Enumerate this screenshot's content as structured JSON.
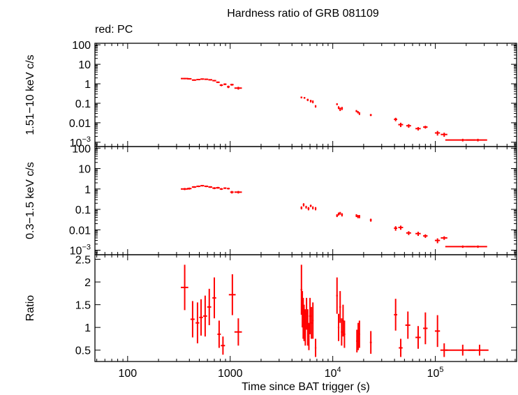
{
  "chart_data": {
    "type": "scatter",
    "title": "Hardness ratio of GRB 081109",
    "subtitle": "red: PC",
    "xlabel": "Time since BAT trigger (s)",
    "x_scale": "log",
    "xlim": [
      48,
      620000
    ],
    "x_ticks": [
      {
        "value": 100,
        "label": "100"
      },
      {
        "value": 1000,
        "label": "1000"
      },
      {
        "value": 10000,
        "base": "10",
        "exp": "4"
      },
      {
        "value": 100000,
        "base": "10",
        "exp": "5"
      }
    ],
    "panels": [
      {
        "id": "hard",
        "ylabel": "1.51−10 keV c/s",
        "y_scale": "log",
        "ylim": [
          0.0006,
          120
        ],
        "y_ticks": [
          {
            "value": 100,
            "label": "100"
          },
          {
            "value": 10,
            "label": "10"
          },
          {
            "value": 1,
            "label": "1"
          },
          {
            "value": 0.1,
            "label": "0.1"
          },
          {
            "value": 0.01,
            "label": "0.01"
          },
          {
            "value": 0.001,
            "base": "10",
            "exp": "−3"
          }
        ],
        "points": [
          [
            360,
            1.85,
            30,
            0.15
          ],
          [
            400,
            1.8,
            20,
            0.15
          ],
          [
            445,
            1.55,
            22,
            0.12
          ],
          [
            490,
            1.65,
            22,
            0.12
          ],
          [
            535,
            1.75,
            22,
            0.12
          ],
          [
            585,
            1.7,
            25,
            0.12
          ],
          [
            640,
            1.6,
            28,
            0.12
          ],
          [
            700,
            1.45,
            30,
            0.12
          ],
          [
            760,
            1.2,
            30,
            0.1
          ],
          [
            820,
            0.85,
            30,
            0.1
          ],
          [
            890,
            0.95,
            30,
            0.1
          ],
          [
            960,
            0.7,
            30,
            0.1
          ],
          [
            1040,
            0.9,
            40,
            0.1
          ],
          [
            1200,
            0.6,
            100,
            0.1
          ],
          [
            4950,
            0.2,
            100,
            0.02
          ],
          [
            5300,
            0.19,
            100,
            0.02
          ],
          [
            5700,
            0.15,
            120,
            0.02
          ],
          [
            6100,
            0.13,
            120,
            0.02
          ],
          [
            6400,
            0.12,
            100,
            0.02
          ],
          [
            6800,
            0.07,
            120,
            0.01
          ],
          [
            11000,
            0.09,
            200,
            0.01
          ],
          [
            11400,
            0.06,
            200,
            0.01
          ],
          [
            11800,
            0.05,
            200,
            0.01
          ],
          [
            12300,
            0.055,
            250,
            0.01
          ],
          [
            17000,
            0.04,
            300,
            0.005
          ],
          [
            17600,
            0.035,
            300,
            0.005
          ],
          [
            18200,
            0.03,
            300,
            0.005
          ],
          [
            23500,
            0.025,
            500,
            0.003
          ],
          [
            41000,
            0.015,
            1500,
            0.003
          ],
          [
            46000,
            0.008,
            2500,
            0.002
          ],
          [
            55000,
            0.007,
            3000,
            0.0015
          ],
          [
            68000,
            0.005,
            4000,
            0.001
          ],
          [
            80000,
            0.006,
            4000,
            0.001
          ],
          [
            105000,
            0.003,
            6000,
            0.0008
          ],
          [
            122000,
            0.0025,
            9000,
            0.0006
          ],
          [
            185000,
            0.0013,
            60000,
            0.0002
          ],
          [
            260000,
            0.0013,
            60000,
            0.0002
          ]
        ]
      },
      {
        "id": "soft",
        "ylabel": "0.3−1.5 keV c/s",
        "y_scale": "log",
        "ylim": [
          0.0006,
          120
        ],
        "y_ticks": [
          {
            "value": 100,
            "label": "100"
          },
          {
            "value": 10,
            "label": "10"
          },
          {
            "value": 1,
            "label": "1"
          },
          {
            "value": 0.1,
            "label": "0.1"
          },
          {
            "value": 0.01,
            "label": "0.01"
          },
          {
            "value": 0.001,
            "base": "10",
            "exp": "−3"
          }
        ],
        "points": [
          [
            360,
            1.0,
            30,
            0.12
          ],
          [
            400,
            1.05,
            20,
            0.12
          ],
          [
            445,
            1.25,
            22,
            0.12
          ],
          [
            490,
            1.35,
            22,
            0.12
          ],
          [
            535,
            1.45,
            22,
            0.12
          ],
          [
            585,
            1.35,
            25,
            0.12
          ],
          [
            640,
            1.25,
            28,
            0.12
          ],
          [
            700,
            1.1,
            30,
            0.12
          ],
          [
            760,
            1.15,
            30,
            0.12
          ],
          [
            820,
            1.0,
            30,
            0.1
          ],
          [
            890,
            1.1,
            30,
            0.1
          ],
          [
            960,
            1.05,
            30,
            0.1
          ],
          [
            1040,
            0.7,
            40,
            0.1
          ],
          [
            1200,
            0.7,
            100,
            0.1
          ],
          [
            4950,
            0.12,
            100,
            0.02
          ],
          [
            5200,
            0.17,
            100,
            0.03
          ],
          [
            5500,
            0.13,
            100,
            0.02
          ],
          [
            5800,
            0.11,
            120,
            0.02
          ],
          [
            6100,
            0.15,
            120,
            0.02
          ],
          [
            6400,
            0.12,
            100,
            0.02
          ],
          [
            6800,
            0.11,
            120,
            0.02
          ],
          [
            11000,
            0.05,
            200,
            0.008
          ],
          [
            11400,
            0.06,
            200,
            0.01
          ],
          [
            11800,
            0.065,
            200,
            0.01
          ],
          [
            12300,
            0.055,
            250,
            0.01
          ],
          [
            17000,
            0.05,
            300,
            0.008
          ],
          [
            17600,
            0.045,
            300,
            0.008
          ],
          [
            18200,
            0.045,
            300,
            0.008
          ],
          [
            23500,
            0.03,
            500,
            0.005
          ],
          [
            41000,
            0.012,
            1500,
            0.003
          ],
          [
            46000,
            0.013,
            2500,
            0.003
          ],
          [
            55000,
            0.007,
            3000,
            0.0015
          ],
          [
            68000,
            0.0065,
            4000,
            0.0015
          ],
          [
            80000,
            0.005,
            4000,
            0.001
          ],
          [
            105000,
            0.003,
            6000,
            0.0008
          ],
          [
            122000,
            0.004,
            9000,
            0.0008
          ],
          [
            185000,
            0.0015,
            60000,
            0.0002
          ],
          [
            260000,
            0.0015,
            60000,
            0.0002
          ]
        ]
      },
      {
        "id": "ratio",
        "ylabel": "Ratio",
        "y_scale": "linear",
        "ylim": [
          0.25,
          2.6
        ],
        "y_ticks": [
          {
            "value": 2.5,
            "label": "2.5"
          },
          {
            "value": 2,
            "label": "2"
          },
          {
            "value": 1.5,
            "label": "1.5"
          },
          {
            "value": 1,
            "label": "1"
          },
          {
            "value": 0.5,
            "label": "0.5"
          }
        ],
        "points": [
          [
            360,
            1.88,
            30,
            0.5
          ],
          [
            430,
            1.18,
            20,
            0.4
          ],
          [
            480,
            1.1,
            20,
            0.45
          ],
          [
            520,
            1.22,
            22,
            0.4
          ],
          [
            570,
            1.25,
            25,
            0.45
          ],
          [
            625,
            1.45,
            28,
            0.4
          ],
          [
            700,
            1.65,
            30,
            0.45
          ],
          [
            780,
            0.85,
            30,
            0.3
          ],
          [
            850,
            0.6,
            40,
            0.2
          ],
          [
            1050,
            1.72,
            80,
            0.45
          ],
          [
            1200,
            0.9,
            100,
            0.3
          ],
          [
            4950,
            1.83,
            100,
            0.55
          ],
          [
            5050,
            1.4,
            80,
            0.4
          ],
          [
            5150,
            1.2,
            80,
            0.45
          ],
          [
            5250,
            1.1,
            80,
            0.4
          ],
          [
            5400,
            1.0,
            80,
            0.4
          ],
          [
            5550,
            1.3,
            100,
            0.35
          ],
          [
            5700,
            1.0,
            100,
            0.4
          ],
          [
            5850,
            0.8,
            100,
            0.3
          ],
          [
            6000,
            1.25,
            120,
            0.4
          ],
          [
            6200,
            1.1,
            120,
            0.35
          ],
          [
            6400,
            1.15,
            100,
            0.4
          ],
          [
            6800,
            0.55,
            120,
            0.2
          ],
          [
            11000,
            1.7,
            200,
            0.4
          ],
          [
            11400,
            1.0,
            200,
            0.3
          ],
          [
            11800,
            1.45,
            200,
            0.35
          ],
          [
            12200,
            0.9,
            200,
            0.3
          ],
          [
            12600,
            1.15,
            250,
            0.35
          ],
          [
            13000,
            0.85,
            250,
            0.3
          ],
          [
            17200,
            0.7,
            300,
            0.25
          ],
          [
            17700,
            0.8,
            300,
            0.3
          ],
          [
            18200,
            0.85,
            300,
            0.3
          ],
          [
            23500,
            0.67,
            500,
            0.25
          ],
          [
            41000,
            1.28,
            1500,
            0.35
          ],
          [
            46000,
            0.55,
            2000,
            0.2
          ],
          [
            54000,
            1.05,
            3000,
            0.3
          ],
          [
            68000,
            0.78,
            4000,
            0.25
          ],
          [
            80000,
            0.98,
            4000,
            0.35
          ],
          [
            105000,
            0.92,
            6000,
            0.35
          ],
          [
            122000,
            0.5,
            10000,
            0.15
          ],
          [
            185000,
            0.5,
            60000,
            0.12
          ],
          [
            270000,
            0.5,
            60000,
            0.12
          ]
        ]
      }
    ]
  }
}
